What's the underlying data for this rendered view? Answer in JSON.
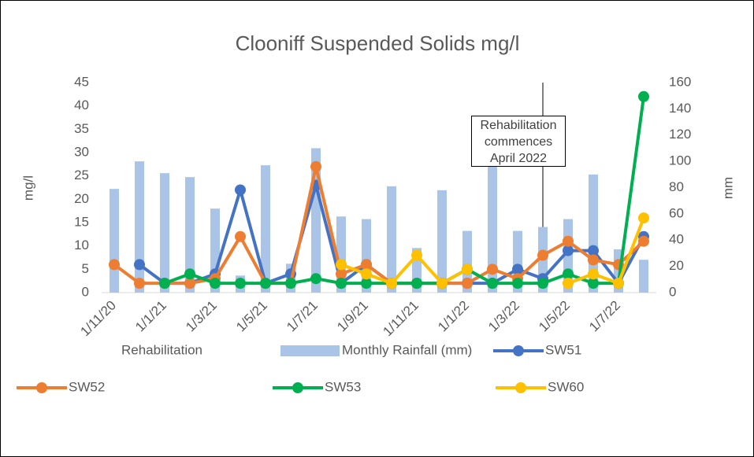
{
  "chart_data": {
    "type": "bar_line",
    "title": "Clooniff Suspended Solids mg/l",
    "y_label": "mg/l",
    "y2_label": "mm",
    "annotation": "Rehabilitation commences April 2022",
    "categories": [
      "1/11/20",
      null,
      "1/1/21",
      null,
      "1/3/21",
      null,
      "1/5/21",
      null,
      "1/7/21",
      null,
      "1/9/21",
      null,
      "1/11/21",
      null,
      "1/1/22",
      null,
      "1/3/22",
      null,
      "1/5/22",
      null,
      "1/7/22",
      null
    ],
    "ylim": [
      0,
      45
    ],
    "yticks": [
      0,
      5,
      10,
      15,
      20,
      25,
      30,
      35,
      40,
      45
    ],
    "y2lim": [
      0,
      160
    ],
    "y2ticks": [
      0,
      20,
      40,
      60,
      80,
      100,
      120,
      140,
      160
    ],
    "grid": false,
    "series": [
      {
        "name": "Rehabilitation",
        "type": "vline",
        "axis": "y2",
        "color": "#000000",
        "values": [
          null,
          null,
          null,
          null,
          null,
          null,
          null,
          null,
          null,
          null,
          null,
          null,
          null,
          null,
          null,
          null,
          null,
          160,
          null,
          null,
          null,
          null
        ]
      },
      {
        "name": "Monthly Rainfall (mm)",
        "type": "bar",
        "axis": "y2",
        "color": "#a9c4e6",
        "values": [
          79,
          100,
          91,
          88,
          64,
          13,
          97,
          22,
          110,
          58,
          56,
          81,
          34,
          78,
          47,
          100,
          47,
          50,
          56,
          90,
          33,
          25
        ]
      },
      {
        "name": "SW51",
        "type": "line",
        "color": "#4472c4",
        "values": [
          null,
          6,
          2,
          2,
          4,
          22,
          2,
          4,
          23,
          2,
          6,
          2,
          2,
          2,
          2,
          2,
          5,
          3,
          9,
          9,
          2,
          12
        ]
      },
      {
        "name": "SW52",
        "type": "line",
        "color": "#ed7d31",
        "values": [
          6,
          2,
          2,
          2,
          3,
          12,
          2,
          2,
          27,
          4,
          6,
          2,
          2,
          2,
          2,
          5,
          3,
          8,
          11,
          7,
          6,
          11
        ]
      },
      {
        "name": "SW53",
        "type": "line",
        "color": "#00b050",
        "values": [
          null,
          null,
          2,
          4,
          2,
          2,
          2,
          2,
          3,
          2,
          2,
          2,
          2,
          2,
          5,
          2,
          2,
          2,
          4,
          2,
          2,
          42
        ]
      },
      {
        "name": "SW60",
        "type": "line",
        "color": "#ffc000",
        "values": [
          null,
          null,
          null,
          null,
          null,
          null,
          null,
          null,
          null,
          6,
          4,
          2,
          8,
          2,
          5,
          null,
          null,
          null,
          2,
          4,
          2,
          16
        ]
      }
    ]
  }
}
